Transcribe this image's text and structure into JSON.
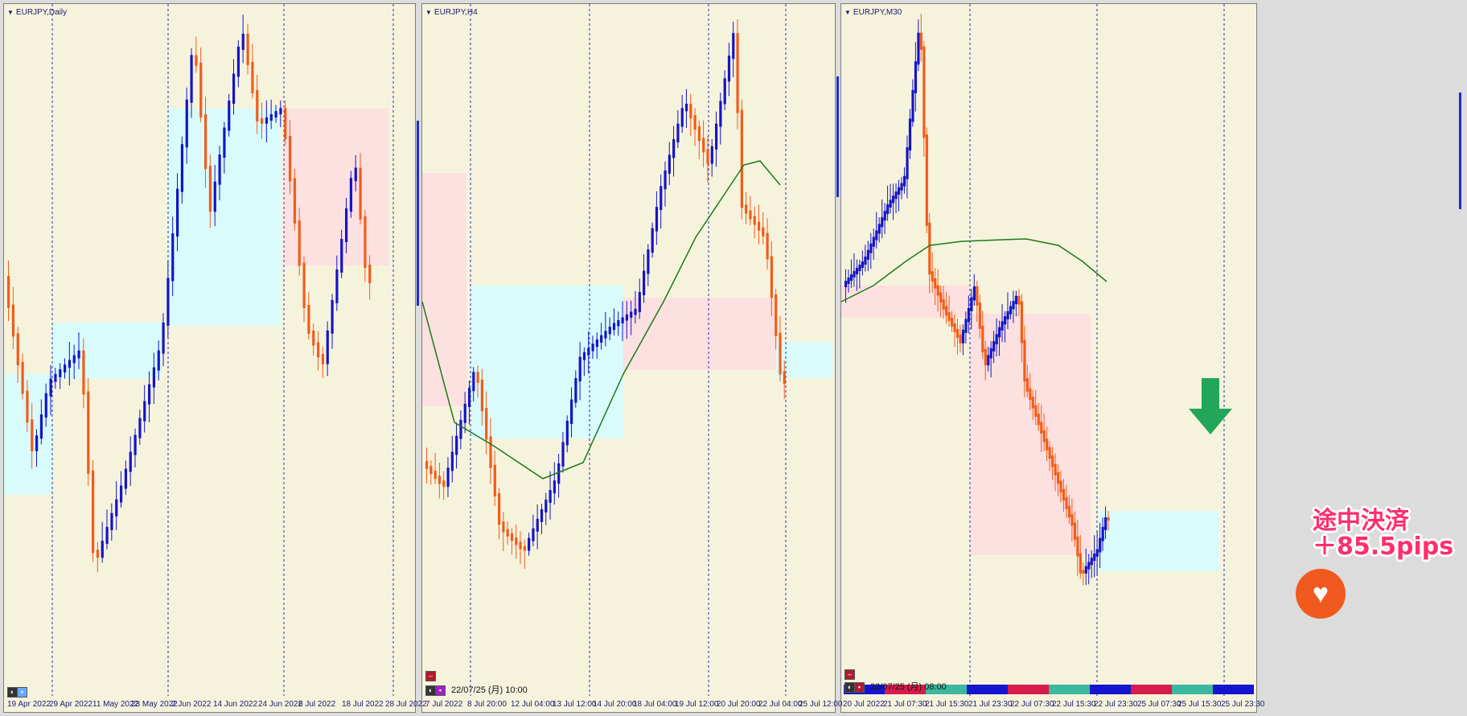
{
  "colors": {
    "bull": "#1414c8",
    "bear": "#f25c19",
    "ma": "#1b7a1b",
    "zone_blue": "#d9fbfb",
    "zone_pink": "#fde0e0",
    "arrow": "#22a65a",
    "annotation": "#ff2f6e",
    "badge": "#f05a1e"
  },
  "panels": [
    {
      "title": "EURJPY,Daily",
      "x_labels": [
        "19 Apr 2022",
        "29 Apr 2022",
        "11 May 2022",
        "23 May 2022",
        "2 Jun 2022",
        "14 Jun 2022",
        "24 Jun 2022",
        "6 Jul 2022",
        "18 Jul 2022",
        "28 Jul 2022"
      ]
    },
    {
      "title": "EURJPY,H4",
      "timestamp": "22/07/25 (月) 10:00",
      "x_labels": [
        "7 Jul 2022",
        "8 Jul 20:00",
        "12 Jul 04:00",
        "13 Jul 12:00",
        "14 Jul 20:00",
        "18 Jul 04:00",
        "19 Jul 12:00",
        "20 Jul 20:00",
        "22 Jul 04:00",
        "25 Jul 12:00"
      ]
    },
    {
      "title": "EURJPY,M30",
      "timestamp": "22/07/25 (月) 08:00",
      "x_labels": [
        "20 Jul 2022",
        "21 Jul 07:30",
        "21 Jul 15:30",
        "21 Jul 23:30",
        "22 Jul 07:30",
        "22 Jul 15:30",
        "22 Jul 23:30",
        "25 Jul 07:30",
        "25 Jul 15:30",
        "25 Jul 23:30"
      ]
    }
  ],
  "annotation": {
    "line1": "途中決済",
    "line2": "＋85.5pips"
  },
  "icons": {
    "sell_arrow": "arrow-down-icon",
    "badge": "broken-heart-icon"
  }
}
